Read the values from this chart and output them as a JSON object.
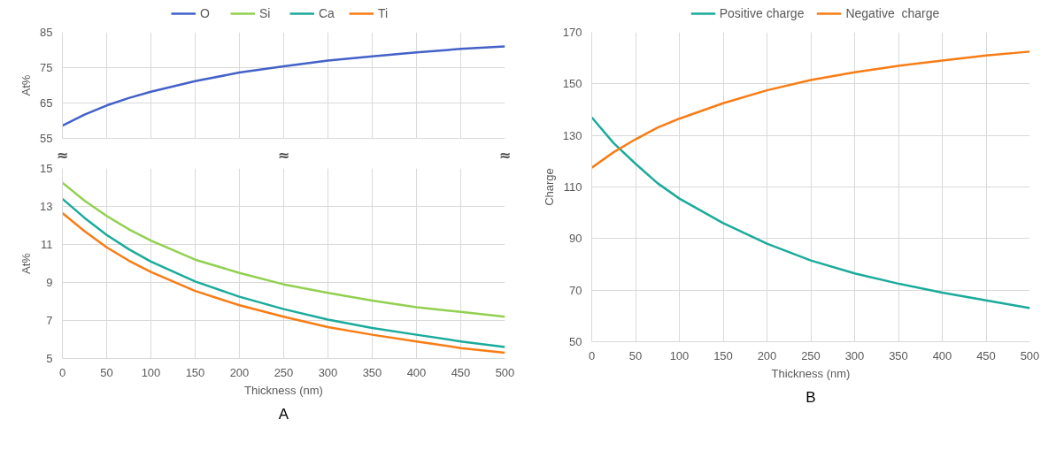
{
  "chart_data": [
    {
      "type": "line",
      "ylabel": "At%",
      "x": [
        0,
        25,
        50,
        75,
        100,
        150,
        200,
        250,
        300,
        350,
        400,
        450,
        500
      ],
      "xlim": [
        0,
        500
      ],
      "xticks": [
        0,
        50,
        100,
        150,
        200,
        250,
        300,
        350,
        400,
        450,
        500
      ],
      "ylim": [
        55,
        85
      ],
      "yticks": [
        55,
        65,
        75,
        85
      ],
      "tick_labels": "y",
      "grid": true,
      "legend": "top",
      "marker": "none",
      "line_style": "solid",
      "series": [
        {
          "name": "O",
          "color": "#4361c8",
          "values": [
            58.6,
            61.7,
            64.3,
            66.4,
            68.2,
            71.2,
            73.6,
            75.4,
            77.0,
            78.2,
            79.3,
            80.3,
            81.0
          ]
        }
      ]
    },
    {
      "type": "line",
      "ylabel": "At%",
      "xlabel": "Thickness (nm)",
      "x": [
        0,
        25,
        50,
        75,
        100,
        150,
        200,
        250,
        300,
        350,
        400,
        450,
        500
      ],
      "xlim": [
        0,
        500
      ],
      "xticks": [
        0,
        50,
        100,
        150,
        200,
        250,
        300,
        350,
        400,
        450,
        500
      ],
      "ylim": [
        5,
        15
      ],
      "yticks": [
        5,
        7,
        9,
        11,
        13,
        15
      ],
      "grid": true,
      "legend": "top",
      "marker": "none",
      "line_style": "solid",
      "annotations": [
        "≈",
        "≈",
        "≈",
        "A"
      ],
      "series": [
        {
          "name": "Si",
          "color": "#92d050",
          "values": [
            14.25,
            13.3,
            12.5,
            11.8,
            11.2,
            10.2,
            9.5,
            8.9,
            8.45,
            8.05,
            7.7,
            7.45,
            7.2
          ]
        },
        {
          "name": "Ca",
          "color": "#1aab9b",
          "values": [
            13.4,
            12.4,
            11.5,
            10.75,
            10.1,
            9.05,
            8.25,
            7.6,
            7.05,
            6.6,
            6.25,
            5.9,
            5.6
          ]
        },
        {
          "name": "Ti",
          "color": "#f97c14",
          "values": [
            12.65,
            11.7,
            10.85,
            10.15,
            9.55,
            8.55,
            7.8,
            7.2,
            6.65,
            6.25,
            5.9,
            5.55,
            5.3
          ]
        }
      ]
    },
    {
      "type": "line",
      "ylabel": "Charge",
      "xlabel": "Thickness (nm)",
      "x": [
        0,
        25,
        50,
        75,
        100,
        150,
        200,
        250,
        300,
        350,
        400,
        450,
        500
      ],
      "xlim": [
        0,
        500
      ],
      "xticks": [
        0,
        50,
        100,
        150,
        200,
        250,
        300,
        350,
        400,
        450,
        500
      ],
      "ylim": [
        50,
        170
      ],
      "yticks": [
        50,
        70,
        90,
        110,
        130,
        150,
        170
      ],
      "grid": true,
      "legend": "top",
      "marker": "none",
      "line_style": "solid",
      "annotations": [
        "B"
      ],
      "series": [
        {
          "name": "Positive charge",
          "color": "#1aab9b",
          "values": [
            137,
            127,
            119,
            111.5,
            105.5,
            96,
            88,
            81.5,
            76.5,
            72.5,
            69,
            66,
            63
          ]
        },
        {
          "name": "Negative  charge",
          "color": "#f97c14",
          "values": [
            117.5,
            123.5,
            128.5,
            133,
            136.5,
            142.5,
            147.5,
            151.5,
            154.5,
            157,
            159,
            161,
            162.5
          ]
        }
      ]
    }
  ]
}
